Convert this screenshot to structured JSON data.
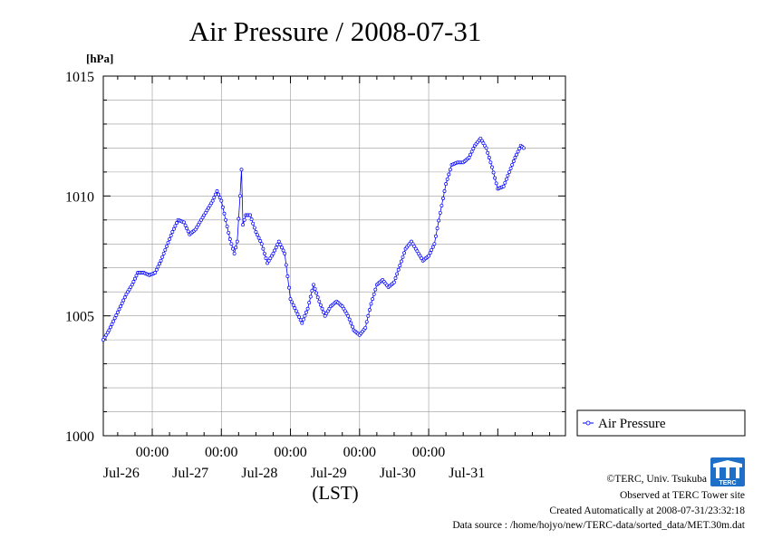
{
  "chart_data": {
    "type": "line",
    "title": "Air Pressure / 2008-07-31",
    "ylabel": "[hPa]",
    "xlabel": "(LST)",
    "ylim": [
      1000,
      1015
    ],
    "y_ticks": [
      "1000",
      "1005",
      "1010",
      "1015"
    ],
    "xlim": [
      "2008-07-25 07:00",
      "2008-07-31 23:30"
    ],
    "x_time_ticks": [
      "00:00",
      "00:00",
      "00:00",
      "00:00",
      "00:00"
    ],
    "x_date_ticks": [
      "Jul-26",
      "Jul-27",
      "Jul-28",
      "Jul-29",
      "Jul-30",
      "Jul-31"
    ],
    "grid": true,
    "legend_position": "right",
    "series": [
      {
        "name": "Air Pressure",
        "color": "#0000ff",
        "marker": "open-circle",
        "points": [
          [
            "2008-07-25 07:00",
            1004.0
          ],
          [
            "2008-07-25 09:00",
            1004.4
          ],
          [
            "2008-07-25 11:00",
            1004.9
          ],
          [
            "2008-07-25 13:00",
            1005.4
          ],
          [
            "2008-07-25 15:00",
            1005.9
          ],
          [
            "2008-07-25 17:00",
            1006.3
          ],
          [
            "2008-07-25 19:00",
            1006.8
          ],
          [
            "2008-07-25 21:00",
            1006.8
          ],
          [
            "2008-07-25 23:00",
            1006.7
          ],
          [
            "2008-07-26 01:00",
            1006.8
          ],
          [
            "2008-07-26 03:00",
            1007.3
          ],
          [
            "2008-07-26 05:00",
            1007.9
          ],
          [
            "2008-07-26 07:00",
            1008.5
          ],
          [
            "2008-07-26 09:00",
            1009.0
          ],
          [
            "2008-07-26 11:00",
            1008.9
          ],
          [
            "2008-07-26 13:00",
            1008.4
          ],
          [
            "2008-07-26 15:00",
            1008.6
          ],
          [
            "2008-07-26 17:00",
            1009.0
          ],
          [
            "2008-07-26 19:00",
            1009.4
          ],
          [
            "2008-07-26 21:00",
            1009.8
          ],
          [
            "2008-07-26 22:30",
            1010.2
          ],
          [
            "2008-07-27 00:00",
            1009.8
          ],
          [
            "2008-07-27 01:30",
            1009.0
          ],
          [
            "2008-07-27 03:00",
            1008.2
          ],
          [
            "2008-07-27 04:30",
            1007.6
          ],
          [
            "2008-07-27 05:30",
            1008.1
          ],
          [
            "2008-07-27 06:30",
            1010.0
          ],
          [
            "2008-07-27 07:00",
            1011.1
          ],
          [
            "2008-07-27 07:30",
            1008.8
          ],
          [
            "2008-07-27 08:30",
            1009.2
          ],
          [
            "2008-07-27 10:00",
            1009.2
          ],
          [
            "2008-07-27 12:00",
            1008.5
          ],
          [
            "2008-07-27 14:00",
            1008.0
          ],
          [
            "2008-07-27 16:00",
            1007.2
          ],
          [
            "2008-07-27 18:00",
            1007.6
          ],
          [
            "2008-07-27 20:00",
            1008.1
          ],
          [
            "2008-07-27 22:00",
            1007.6
          ],
          [
            "2008-07-28 00:00",
            1005.7
          ],
          [
            "2008-07-28 02:00",
            1005.2
          ],
          [
            "2008-07-28 04:00",
            1004.7
          ],
          [
            "2008-07-28 06:00",
            1005.3
          ],
          [
            "2008-07-28 08:00",
            1006.3
          ],
          [
            "2008-07-28 10:00",
            1005.6
          ],
          [
            "2008-07-28 12:00",
            1005.0
          ],
          [
            "2008-07-28 14:00",
            1005.4
          ],
          [
            "2008-07-28 16:00",
            1005.6
          ],
          [
            "2008-07-28 18:00",
            1005.4
          ],
          [
            "2008-07-28 20:00",
            1005.0
          ],
          [
            "2008-07-28 22:00",
            1004.4
          ],
          [
            "2008-07-29 00:00",
            1004.2
          ],
          [
            "2008-07-29 02:00",
            1004.5
          ],
          [
            "2008-07-29 04:00",
            1005.5
          ],
          [
            "2008-07-29 06:00",
            1006.3
          ],
          [
            "2008-07-29 08:00",
            1006.5
          ],
          [
            "2008-07-29 10:00",
            1006.2
          ],
          [
            "2008-07-29 12:00",
            1006.4
          ],
          [
            "2008-07-29 14:00",
            1007.1
          ],
          [
            "2008-07-29 16:00",
            1007.8
          ],
          [
            "2008-07-29 18:00",
            1008.1
          ],
          [
            "2008-07-29 20:00",
            1007.7
          ],
          [
            "2008-07-29 22:00",
            1007.3
          ],
          [
            "2008-07-30 00:00",
            1007.5
          ],
          [
            "2008-07-30 02:00",
            1008.0
          ],
          [
            "2008-07-30 04:00",
            1009.3
          ],
          [
            "2008-07-30 06:00",
            1010.5
          ],
          [
            "2008-07-30 08:00",
            1011.3
          ],
          [
            "2008-07-30 10:00",
            1011.4
          ],
          [
            "2008-07-30 12:00",
            1011.4
          ],
          [
            "2008-07-30 14:00",
            1011.6
          ],
          [
            "2008-07-30 16:00",
            1012.1
          ],
          [
            "2008-07-30 18:00",
            1012.4
          ],
          [
            "2008-07-30 20:00",
            1012.0
          ],
          [
            "2008-07-30 22:00",
            1011.2
          ],
          [
            "2008-07-31 00:00",
            1010.3
          ],
          [
            "2008-07-31 02:00",
            1010.4
          ],
          [
            "2008-07-31 04:00",
            1011.0
          ],
          [
            "2008-07-31 06:00",
            1011.6
          ],
          [
            "2008-07-31 08:00",
            1012.1
          ],
          [
            "2008-07-31 09:00",
            1012.0
          ]
        ]
      }
    ]
  },
  "credits": {
    "copyright": "©TERC, Univ. Tsukuba",
    "observed": "Observed at TERC Tower site",
    "created": "Created Automatically at 2008-07-31/23:32:18",
    "source": "Data source : /home/hojyo/new/TERC-data/sorted_data/MET.30m.dat"
  },
  "logo": {
    "text": "TERC",
    "color": "#1e6fc8"
  }
}
